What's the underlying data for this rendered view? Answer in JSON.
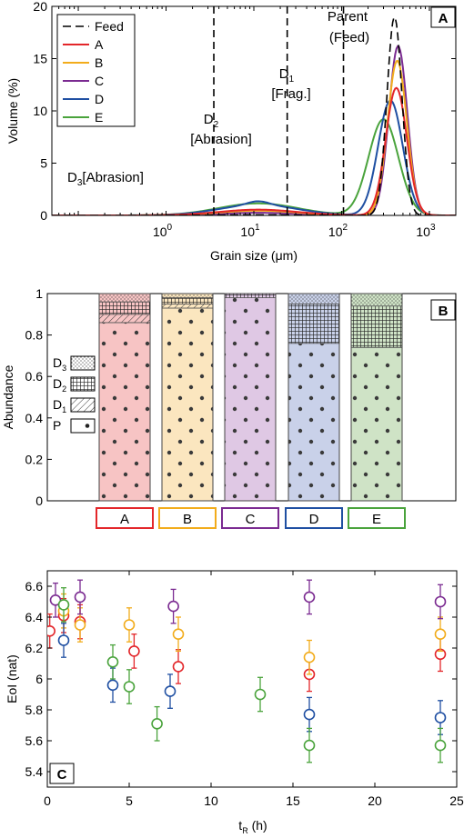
{
  "colors": {
    "A": "#e3262a",
    "B": "#f2ac1b",
    "C": "#7b2b91",
    "D": "#1f4fa2",
    "E": "#4aa33c",
    "Feed": "#000000"
  },
  "chart_data": [
    {
      "panel": "A",
      "type": "line",
      "xlabel": "Grain size (μm)",
      "ylabel": "Volume (%)",
      "xscale": "log",
      "xlim": [
        0.05,
        2000
      ],
      "ylim": [
        0,
        20
      ],
      "x_ticks": [
        "10^0",
        "10^1",
        "10^2",
        "10^3"
      ],
      "y_ticks": [
        "0",
        "5",
        "10",
        "15",
        "20"
      ],
      "legend_position": "top-left",
      "legend": [
        "Feed",
        "A",
        "B",
        "C",
        "D",
        "E"
      ],
      "dividers_um": [
        3.5,
        24,
        105
      ],
      "annotations": {
        "parent": [
          "Parent",
          "(Feed)"
        ],
        "d1": [
          "D1",
          "[Frag.]"
        ],
        "d2": [
          "D2",
          "[Abrasion]"
        ],
        "d3": "D3 [Abrasion]"
      },
      "series": [
        {
          "name": "Feed",
          "style": "dashed",
          "peak_x": 400,
          "peak_y": 19.0
        },
        {
          "name": "A",
          "peak_x": 420,
          "peak_y": 12.2
        },
        {
          "name": "B",
          "peak_x": 430,
          "peak_y": 14.8
        },
        {
          "name": "C",
          "peak_x": 440,
          "peak_y": 16.2
        },
        {
          "name": "D",
          "peak_x": 360,
          "peak_y": 11.0
        },
        {
          "name": "E",
          "peak_x": 300,
          "peak_y": 9.2
        }
      ]
    },
    {
      "panel": "B",
      "type": "bar",
      "stacked": true,
      "ylabel": "Abundance",
      "ylim": [
        0,
        1
      ],
      "y_ticks": [
        "0",
        "0.2",
        "0.4",
        "0.6",
        "0.8",
        "1"
      ],
      "categories": [
        "A",
        "B",
        "C",
        "D",
        "E"
      ],
      "components": [
        "P",
        "D1",
        "D2",
        "D3"
      ],
      "legend": [
        "D3",
        "D2",
        "D1",
        "P"
      ],
      "values": {
        "A": {
          "P": 0.86,
          "D1": 0.04,
          "D2": 0.06,
          "D3": 0.04
        },
        "B": {
          "P": 0.93,
          "D1": 0.02,
          "D2": 0.03,
          "D3": 0.02
        },
        "C": {
          "P": 0.98,
          "D1": 0.0,
          "D2": 0.02,
          "D3": 0.0
        },
        "D": {
          "P": 0.76,
          "D1": 0.0,
          "D2": 0.19,
          "D3": 0.05
        },
        "E": {
          "P": 0.74,
          "D1": 0.0,
          "D2": 0.2,
          "D3": 0.06
        }
      }
    },
    {
      "panel": "C",
      "type": "scatter",
      "xlabel": "tR (h)",
      "ylabel": "EoI (nat)",
      "xlim": [
        0,
        25
      ],
      "ylim": [
        5.3,
        6.7
      ],
      "x_ticks": [
        "0",
        "5",
        "10",
        "15",
        "20",
        "25"
      ],
      "y_ticks": [
        "5.4",
        "5.6",
        "5.8",
        "6",
        "6.2",
        "6.4",
        "6.6"
      ],
      "series": [
        {
          "name": "A",
          "points": [
            [
              0.15,
              6.31
            ],
            [
              1.0,
              6.41
            ],
            [
              2.0,
              6.37
            ],
            [
              5.3,
              6.18
            ],
            [
              8.0,
              6.08
            ],
            [
              16.0,
              6.03
            ],
            [
              24.0,
              6.16
            ]
          ],
          "err": 0.11
        },
        {
          "name": "B",
          "points": [
            [
              1.0,
              6.44
            ],
            [
              2.0,
              6.35
            ],
            [
              5.0,
              6.35
            ],
            [
              8.0,
              6.29
            ],
            [
              16.0,
              6.14
            ],
            [
              24.0,
              6.29
            ]
          ],
          "err": 0.11
        },
        {
          "name": "C",
          "points": [
            [
              0.5,
              6.51
            ],
            [
              2.0,
              6.53
            ],
            [
              7.7,
              6.47
            ],
            [
              16.0,
              6.53
            ],
            [
              24.0,
              6.5
            ]
          ],
          "err": 0.11
        },
        {
          "name": "D",
          "points": [
            [
              1.0,
              6.25
            ],
            [
              4.0,
              5.96
            ],
            [
              7.5,
              5.92
            ],
            [
              16.0,
              5.77
            ],
            [
              24.0,
              5.75
            ]
          ],
          "err": 0.11
        },
        {
          "name": "E",
          "points": [
            [
              1.0,
              6.48
            ],
            [
              4.0,
              6.11
            ],
            [
              5.0,
              5.95
            ],
            [
              6.7,
              5.71
            ],
            [
              13.0,
              5.9
            ],
            [
              16.0,
              5.57
            ],
            [
              24.0,
              5.57
            ]
          ],
          "err": 0.11
        }
      ]
    }
  ]
}
